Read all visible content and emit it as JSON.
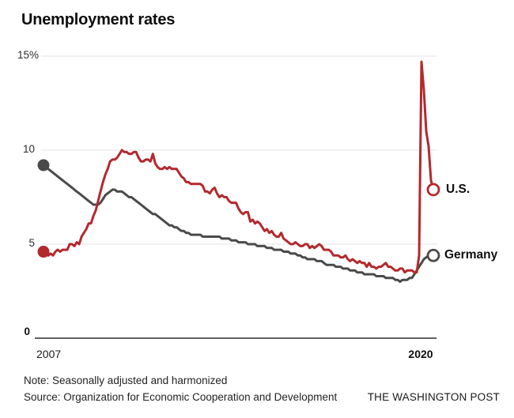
{
  "chart_data": {
    "type": "line",
    "title": "Unemployment rates",
    "x_start_label": "2007",
    "x_end_label": "2020",
    "x_unit": "monthly, Jan 2007 - Sep 2020",
    "ylim": [
      0,
      15
    ],
    "grid": true,
    "y_ticks": [
      {
        "label": "15%",
        "value": 15
      },
      {
        "label": "10",
        "value": 10
      },
      {
        "label": "5",
        "value": 5
      },
      {
        "label": "0",
        "value": 0
      }
    ],
    "series": [
      {
        "name": "Germany",
        "color": "#4a4a4a",
        "values": [
          9.2,
          9.1,
          9.0,
          8.9,
          8.8,
          8.7,
          8.6,
          8.5,
          8.4,
          8.3,
          8.2,
          8.1,
          8.0,
          7.9,
          7.8,
          7.7,
          7.6,
          7.5,
          7.4,
          7.3,
          7.2,
          7.1,
          7.1,
          7.1,
          7.2,
          7.4,
          7.6,
          7.7,
          7.8,
          7.9,
          7.9,
          7.8,
          7.8,
          7.8,
          7.7,
          7.6,
          7.5,
          7.5,
          7.4,
          7.3,
          7.2,
          7.1,
          7.0,
          6.9,
          6.8,
          6.7,
          6.6,
          6.6,
          6.5,
          6.4,
          6.3,
          6.2,
          6.1,
          6.0,
          6.0,
          5.9,
          5.9,
          5.8,
          5.7,
          5.7,
          5.6,
          5.6,
          5.5,
          5.5,
          5.5,
          5.5,
          5.5,
          5.4,
          5.4,
          5.4,
          5.4,
          5.4,
          5.4,
          5.4,
          5.4,
          5.3,
          5.3,
          5.3,
          5.3,
          5.2,
          5.2,
          5.2,
          5.1,
          5.1,
          5.1,
          5.1,
          5.0,
          5.0,
          5.0,
          5.0,
          4.9,
          4.9,
          4.9,
          4.9,
          4.8,
          4.8,
          4.8,
          4.7,
          4.7,
          4.7,
          4.7,
          4.6,
          4.6,
          4.6,
          4.5,
          4.5,
          4.5,
          4.4,
          4.4,
          4.3,
          4.3,
          4.2,
          4.2,
          4.2,
          4.2,
          4.1,
          4.1,
          4.1,
          4.0,
          3.9,
          3.9,
          3.9,
          3.9,
          3.8,
          3.8,
          3.8,
          3.7,
          3.7,
          3.7,
          3.6,
          3.6,
          3.6,
          3.5,
          3.5,
          3.5,
          3.4,
          3.4,
          3.4,
          3.4,
          3.4,
          3.3,
          3.3,
          3.3,
          3.3,
          3.2,
          3.2,
          3.2,
          3.2,
          3.1,
          3.1,
          3.0,
          3.1,
          3.1,
          3.1,
          3.2,
          3.2,
          3.4,
          3.6,
          3.8,
          4.0,
          4.2,
          4.3,
          4.4,
          4.4,
          4.4
        ]
      },
      {
        "name": "U.S.",
        "color": "#b2292e",
        "values": [
          4.6,
          4.5,
          4.4,
          4.5,
          4.4,
          4.6,
          4.7,
          4.6,
          4.7,
          4.7,
          4.7,
          5.0,
          5.0,
          4.9,
          5.1,
          5.0,
          5.4,
          5.6,
          5.8,
          6.1,
          6.1,
          6.5,
          6.8,
          7.3,
          7.8,
          8.3,
          8.7,
          9.0,
          9.4,
          9.5,
          9.5,
          9.6,
          9.8,
          10.0,
          9.9,
          9.9,
          9.8,
          9.8,
          9.9,
          9.9,
          9.6,
          9.4,
          9.4,
          9.5,
          9.5,
          9.4,
          9.8,
          9.3,
          9.1,
          9.0,
          9.0,
          9.1,
          9.0,
          9.1,
          9.0,
          9.0,
          9.0,
          8.8,
          8.6,
          8.5,
          8.3,
          8.3,
          8.2,
          8.2,
          8.2,
          8.2,
          8.2,
          8.1,
          7.8,
          7.8,
          7.7,
          7.9,
          8.0,
          7.7,
          7.5,
          7.6,
          7.5,
          7.5,
          7.3,
          7.2,
          7.2,
          7.2,
          6.9,
          6.7,
          6.6,
          6.7,
          6.7,
          6.2,
          6.3,
          6.1,
          6.2,
          6.1,
          5.9,
          5.7,
          5.8,
          5.6,
          5.7,
          5.5,
          5.4,
          5.4,
          5.6,
          5.3,
          5.2,
          5.1,
          5.0,
          5.0,
          5.1,
          5.0,
          4.9,
          4.9,
          5.0,
          5.0,
          4.8,
          4.9,
          4.8,
          4.9,
          5.0,
          4.9,
          4.7,
          4.7,
          4.7,
          4.6,
          4.4,
          4.4,
          4.4,
          4.3,
          4.3,
          4.4,
          4.2,
          4.1,
          4.2,
          4.1,
          4.0,
          4.1,
          4.0,
          4.0,
          3.8,
          4.0,
          3.8,
          3.8,
          3.7,
          3.8,
          3.8,
          3.9,
          4.0,
          3.8,
          3.8,
          3.7,
          3.6,
          3.6,
          3.7,
          3.7,
          3.5,
          3.6,
          3.6,
          3.6,
          3.5,
          3.5,
          4.4,
          14.7,
          13.2,
          11.0,
          10.2,
          8.4,
          7.9
        ]
      }
    ],
    "note": "Note: Seasonally adjusted and harmonized",
    "source": "Source: Organization for Economic Cooperation and Development",
    "credit": "THE WASHINGTON POST",
    "colors": {
      "us_line": "#b2292e",
      "germany_line": "#4a4a4a",
      "gridline": "#e3e3e3",
      "axis": "#5f5f5f",
      "background": "#ffffff"
    }
  }
}
